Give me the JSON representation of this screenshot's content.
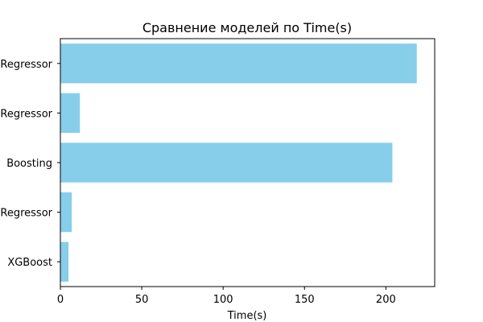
{
  "chart_data": {
    "type": "bar",
    "orientation": "horizontal",
    "title": "Сравнение моделей по Time(s)",
    "xlabel": "Time(s)",
    "ylabel": "",
    "categories": [
      "Regressor",
      "Regressor",
      "Boosting",
      "Regressor",
      "XGBoost"
    ],
    "values": [
      219,
      12,
      204,
      7,
      5
    ],
    "xlim": [
      0,
      230
    ],
    "xticks": [
      0,
      50,
      100,
      150,
      200
    ],
    "grid": false,
    "bar_color": "#87ceeb"
  }
}
